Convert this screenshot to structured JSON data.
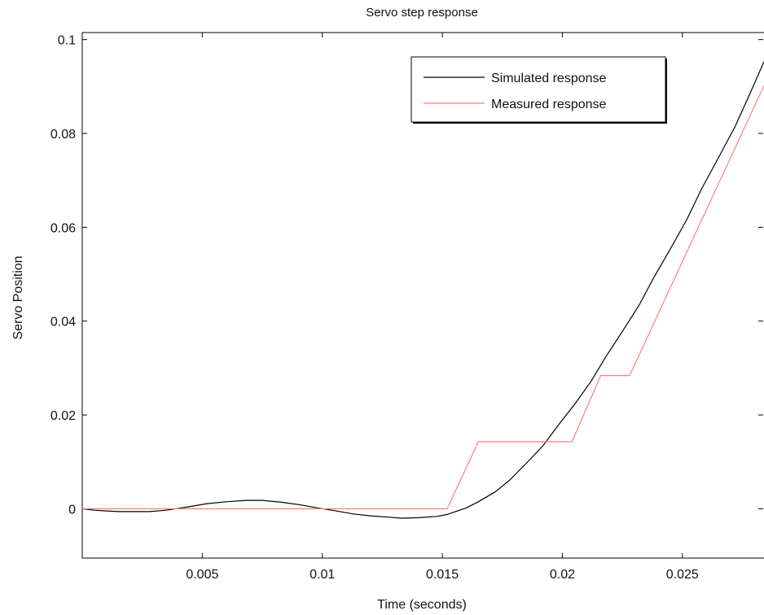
{
  "chart_data": {
    "type": "line",
    "title": "Servo step response",
    "xlabel": "Time (seconds)",
    "ylabel": "Servo Position",
    "xlim": [
      0,
      0.0284
    ],
    "ylim": [
      -0.0105,
      0.1015
    ],
    "xticks": [
      0.005,
      0.01,
      0.015,
      0.02,
      0.025
    ],
    "xtick_labels": [
      "0.005",
      "0.01",
      "0.015",
      "0.02",
      "0.025"
    ],
    "yticks": [
      0,
      0.02,
      0.04,
      0.06,
      0.08,
      0.1
    ],
    "ytick_labels": [
      "0",
      "0.02",
      "0.04",
      "0.06",
      "0.08",
      "0.1"
    ],
    "grid": false,
    "legend_position": "top-right",
    "series": [
      {
        "name": "Simulated response",
        "color": "#000000",
        "x": [
          0,
          0.0005,
          0.0015,
          0.0028,
          0.0035,
          0.0045,
          0.0052,
          0.006,
          0.0068,
          0.0075,
          0.0083,
          0.009,
          0.0098,
          0.0105,
          0.0113,
          0.012,
          0.0128,
          0.0133,
          0.014,
          0.0148,
          0.0152,
          0.016,
          0.0165,
          0.0172,
          0.0178,
          0.0185,
          0.0192,
          0.0198,
          0.0205,
          0.0212,
          0.0218,
          0.0225,
          0.0232,
          0.0238,
          0.0245,
          0.0252,
          0.0258,
          0.0265,
          0.0272,
          0.0278,
          0.0284
        ],
        "values": [
          0,
          -0.0003,
          -0.0006,
          -0.0006,
          -0.0003,
          0.0005,
          0.0011,
          0.0015,
          0.0018,
          0.0018,
          0.0014,
          0.0009,
          0.0002,
          -0.0004,
          -0.0011,
          -0.0015,
          -0.0018,
          -0.002,
          -0.0019,
          -0.0016,
          -0.0012,
          0.0002,
          0.0015,
          0.0036,
          0.0061,
          0.0097,
          0.0135,
          0.0176,
          0.0222,
          0.0272,
          0.0323,
          0.0378,
          0.0434,
          0.0492,
          0.0554,
          0.0618,
          0.0682,
          0.0748,
          0.0815,
          0.0883,
          0.0953
        ]
      },
      {
        "name": "Measured response",
        "color": "#ff7f7f",
        "x": [
          0,
          0.0152,
          0.0165,
          0.0204,
          0.0216,
          0.0228,
          0.0284
        ],
        "values": [
          0,
          0,
          0.0143,
          0.0143,
          0.0284,
          0.0284,
          0.0902
        ]
      }
    ]
  }
}
